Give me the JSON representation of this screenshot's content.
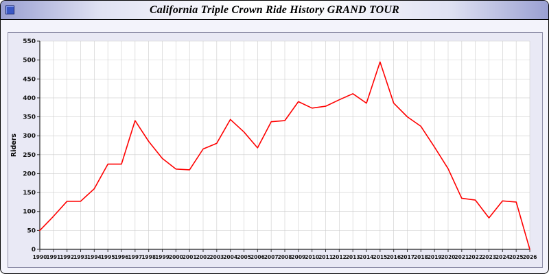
{
  "window": {
    "title_icon": "blue-square"
  },
  "chart_data": {
    "type": "line",
    "title": "California Triple Crown Ride History GRAND TOUR",
    "xlabel": "",
    "ylabel": "Riders",
    "ylim": [
      0,
      550
    ],
    "ytick_step": 50,
    "grid": true,
    "legend_position": "none",
    "line_color": "#ff0000",
    "plot_bg": "#ffffff",
    "panel_bg": "#e9e9f5",
    "grid_color": "#cccccc",
    "x": [
      1990,
      1991,
      1992,
      1993,
      1994,
      1995,
      1996,
      1997,
      1998,
      1999,
      2000,
      2001,
      2002,
      2003,
      2004,
      2005,
      2006,
      2007,
      2008,
      2009,
      2010,
      2011,
      2012,
      2013,
      2014,
      2015,
      2016,
      2017,
      2018,
      2019,
      2020,
      2021,
      2022,
      2023,
      2024,
      2025,
      2026
    ],
    "series": [
      {
        "name": "Riders",
        "values": [
          50,
          87,
          127,
          127,
          160,
          225,
          225,
          340,
          285,
          240,
          212,
          210,
          265,
          280,
          343,
          310,
          268,
          337,
          340,
          390,
          373,
          378,
          395,
          411,
          386,
          495,
          386,
          350,
          325,
          270,
          213,
          135,
          130,
          83,
          128,
          125,
          0
        ]
      }
    ]
  }
}
